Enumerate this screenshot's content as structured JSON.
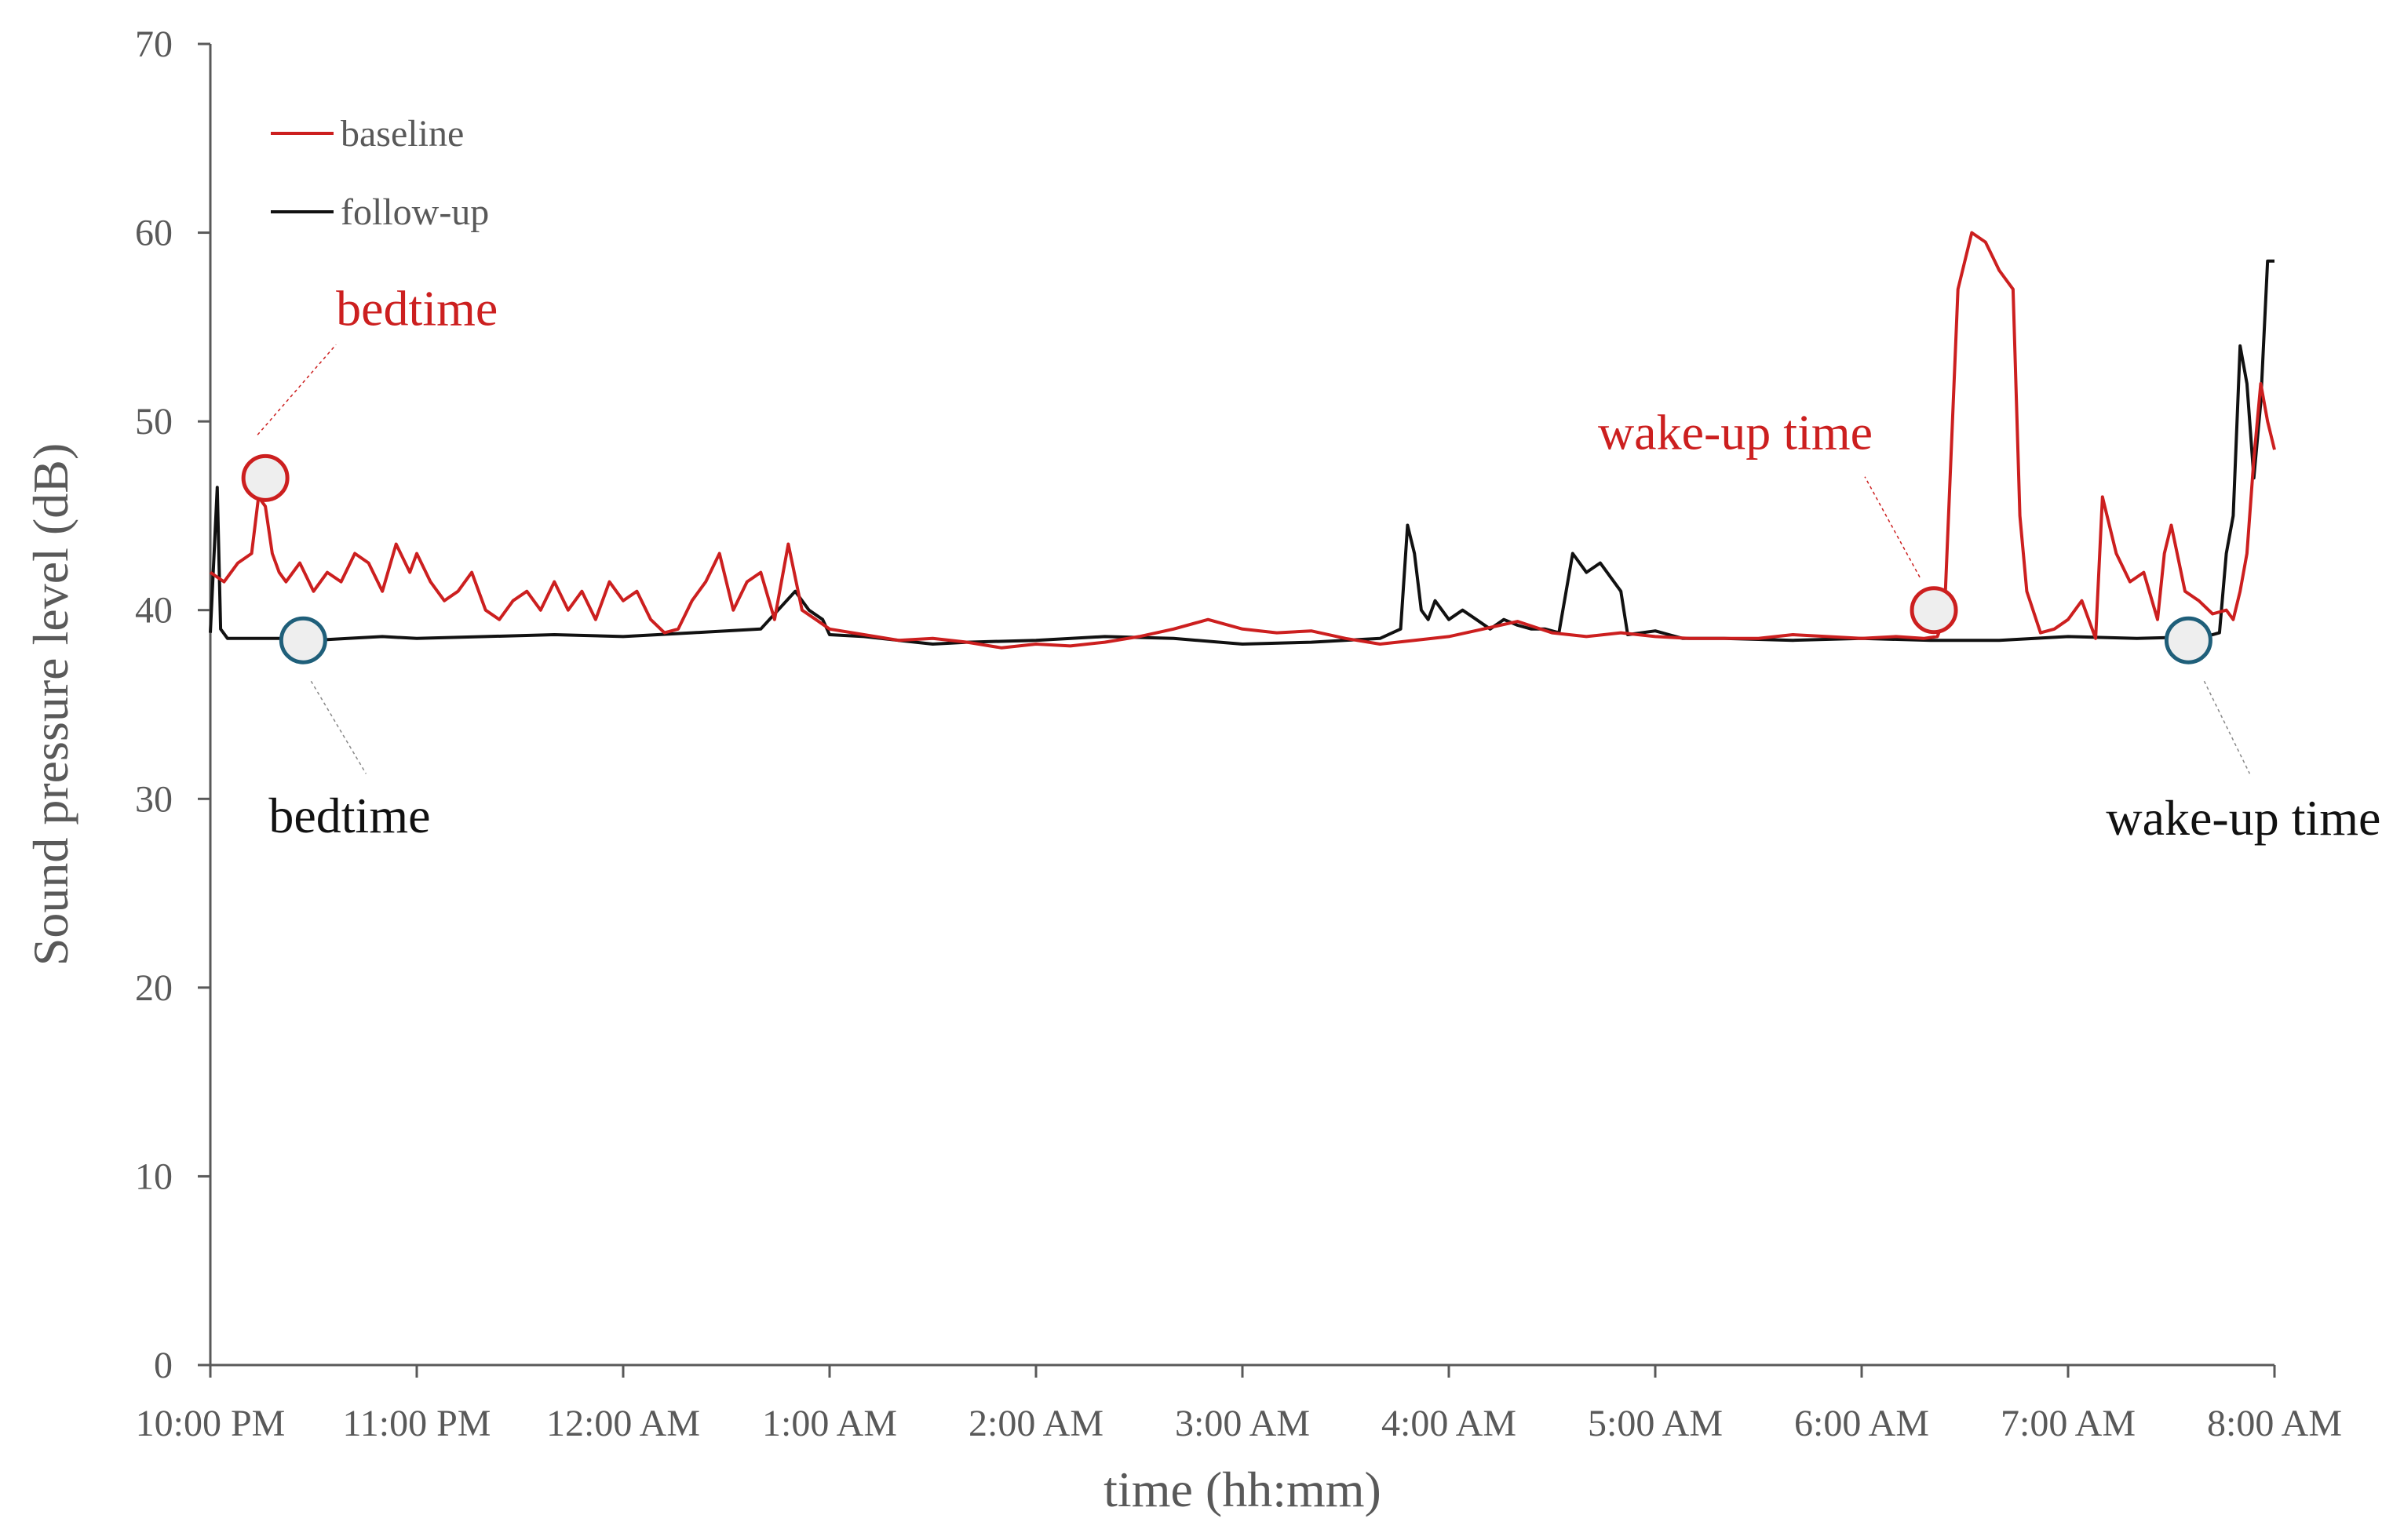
{
  "chart_data": {
    "type": "line",
    "title": "",
    "xlabel": "time (hh:mm)",
    "ylabel": "Sound pressure level (dB)",
    "ylim": [
      0,
      70
    ],
    "yticks": [
      0,
      10,
      20,
      30,
      40,
      50,
      60,
      70
    ],
    "xlim": [
      "10:00 PM",
      "8:00 AM"
    ],
    "xticks": [
      "10:00 PM",
      "11:00 PM",
      "12:00 AM",
      "1:00 AM",
      "2:00 AM",
      "3:00 AM",
      "4:00 AM",
      "5:00 AM",
      "6:00 AM",
      "7:00 AM",
      "8:00 AM"
    ],
    "grid": false,
    "legend_position": "top-left",
    "series": [
      {
        "name": "baseline",
        "color": "#cc1f1f",
        "x": [
          "10:00 PM",
          "10:04 PM",
          "10:08 PM",
          "10:12 PM",
          "10:14 PM",
          "10:16 PM",
          "10:18 PM",
          "10:20 PM",
          "10:22 PM",
          "10:26 PM",
          "10:30 PM",
          "10:34 PM",
          "10:38 PM",
          "10:42 PM",
          "10:46 PM",
          "10:50 PM",
          "10:54 PM",
          "10:58 PM",
          "11:00 PM",
          "11:04 PM",
          "11:08 PM",
          "11:12 PM",
          "11:16 PM",
          "11:20 PM",
          "11:24 PM",
          "11:28 PM",
          "11:32 PM",
          "11:36 PM",
          "11:40 PM",
          "11:44 PM",
          "11:48 PM",
          "11:52 PM",
          "11:56 PM",
          "12:00 AM",
          "12:04 AM",
          "12:08 AM",
          "12:12 AM",
          "12:16 AM",
          "12:20 AM",
          "12:24 AM",
          "12:28 AM",
          "12:32 AM",
          "12:36 AM",
          "12:40 AM",
          "12:44 AM",
          "12:48 AM",
          "12:52 AM",
          "12:56 AM",
          "1:00 AM",
          "1:10 AM",
          "1:20 AM",
          "1:30 AM",
          "1:40 AM",
          "1:50 AM",
          "2:00 AM",
          "2:10 AM",
          "2:20 AM",
          "2:30 AM",
          "2:40 AM",
          "2:50 AM",
          "3:00 AM",
          "3:10 AM",
          "3:20 AM",
          "3:30 AM",
          "3:40 AM",
          "3:50 AM",
          "4:00 AM",
          "4:10 AM",
          "4:20 AM",
          "4:30 AM",
          "4:40 AM",
          "4:50 AM",
          "5:00 AM",
          "5:10 AM",
          "5:20 AM",
          "5:30 AM",
          "5:40 AM",
          "5:50 AM",
          "6:00 AM",
          "6:10 AM",
          "6:18 AM",
          "6:22 AM",
          "6:24 AM",
          "6:28 AM",
          "6:32 AM",
          "6:36 AM",
          "6:40 AM",
          "6:44 AM",
          "6:46 AM",
          "6:48 AM",
          "6:52 AM",
          "6:56 AM",
          "7:00 AM",
          "7:04 AM",
          "7:08 AM",
          "7:10 AM",
          "7:14 AM",
          "7:18 AM",
          "7:22 AM",
          "7:26 AM",
          "7:28 AM",
          "7:30 AM",
          "7:34 AM",
          "7:38 AM",
          "7:42 AM",
          "7:46 AM",
          "7:48 AM",
          "7:50 AM",
          "7:52 AM",
          "7:54 AM",
          "7:56 AM",
          "7:58 AM",
          "8:00 AM"
        ],
        "y": [
          42.0,
          41.5,
          42.5,
          43.0,
          46.0,
          45.5,
          43.0,
          42.0,
          41.5,
          42.5,
          41.0,
          42.0,
          41.5,
          43.0,
          42.5,
          41.0,
          43.5,
          42.0,
          43.0,
          41.5,
          40.5,
          41.0,
          42.0,
          40.0,
          39.5,
          40.5,
          41.0,
          40.0,
          41.5,
          40.0,
          41.0,
          39.5,
          41.5,
          40.5,
          41.0,
          39.5,
          38.8,
          39.0,
          40.5,
          41.5,
          43.0,
          40.0,
          41.5,
          42.0,
          39.5,
          43.5,
          40.0,
          39.5,
          39.0,
          38.7,
          38.4,
          38.5,
          38.3,
          38.0,
          38.2,
          38.1,
          38.3,
          38.6,
          39.0,
          39.5,
          39.0,
          38.8,
          38.9,
          38.5,
          38.2,
          38.4,
          38.6,
          39.0,
          39.4,
          38.8,
          38.6,
          38.8,
          38.6,
          38.5,
          38.5,
          38.5,
          38.7,
          38.6,
          38.5,
          38.6,
          38.5,
          38.6,
          39.5,
          57.0,
          60.0,
          59.5,
          58.0,
          57.0,
          45.0,
          41.0,
          38.8,
          39.0,
          39.5,
          40.5,
          38.5,
          46.0,
          43.0,
          41.5,
          42.0,
          39.5,
          43.0,
          44.5,
          41.0,
          40.5,
          39.8,
          40.0,
          39.5,
          41.0,
          43.0,
          48.0,
          52.0,
          50.0,
          48.5
        ]
      },
      {
        "name": "follow-up",
        "color": "#111111",
        "x": [
          "10:00 PM",
          "10:02 PM",
          "10:03 PM",
          "10:05 PM",
          "10:10 PM",
          "10:20 PM",
          "10:30 PM",
          "10:40 PM",
          "10:50 PM",
          "11:00 PM",
          "11:20 PM",
          "11:40 PM",
          "12:00 AM",
          "12:20 AM",
          "12:40 AM",
          "12:50 AM",
          "12:54 AM",
          "12:58 AM",
          "1:00 AM",
          "1:10 AM",
          "1:20 AM",
          "1:30 AM",
          "1:40 AM",
          "2:00 AM",
          "2:20 AM",
          "2:40 AM",
          "3:00 AM",
          "3:20 AM",
          "3:40 AM",
          "3:46 AM",
          "3:48 AM",
          "3:50 AM",
          "3:52 AM",
          "3:54 AM",
          "3:56 AM",
          "4:00 AM",
          "4:04 AM",
          "4:08 AM",
          "4:12 AM",
          "4:16 AM",
          "4:20 AM",
          "4:24 AM",
          "4:28 AM",
          "4:32 AM",
          "4:36 AM",
          "4:40 AM",
          "4:44 AM",
          "4:48 AM",
          "4:50 AM",
          "4:52 AM",
          "4:56 AM",
          "5:00 AM",
          "5:04 AM",
          "5:06 AM",
          "5:08 AM",
          "5:20 AM",
          "5:40 AM",
          "6:00 AM",
          "6:20 AM",
          "6:40 AM",
          "7:00 AM",
          "7:20 AM",
          "7:40 AM",
          "7:44 AM",
          "7:46 AM",
          "7:48 AM",
          "7:50 AM",
          "7:52 AM",
          "7:54 AM",
          "7:56 AM",
          "7:58 AM",
          "8:00 AM"
        ],
        "y": [
          38.8,
          46.5,
          39.0,
          38.5,
          38.5,
          38.5,
          38.4,
          38.5,
          38.6,
          38.5,
          38.6,
          38.7,
          38.6,
          38.8,
          39.0,
          41.0,
          40.0,
          39.5,
          38.7,
          38.6,
          38.4,
          38.2,
          38.3,
          38.4,
          38.6,
          38.5,
          38.2,
          38.3,
          38.5,
          39.0,
          44.5,
          43.0,
          40.0,
          39.5,
          40.5,
          39.5,
          40.0,
          39.5,
          39.0,
          39.5,
          39.2,
          39.0,
          39.0,
          38.8,
          43.0,
          42.0,
          42.5,
          41.5,
          41.0,
          38.7,
          38.8,
          38.9,
          38.7,
          38.6,
          38.5,
          38.5,
          38.4,
          38.5,
          38.4,
          38.4,
          38.6,
          38.5,
          38.6,
          38.8,
          43.0,
          45.0,
          54.0,
          52.0,
          47.0,
          51.0,
          58.5,
          58.5
        ]
      }
    ],
    "annotations": [
      {
        "label": "bedtime",
        "series": "baseline",
        "x": "10:16 PM",
        "y": 47.0,
        "color": "#cc1f1f"
      },
      {
        "label": "wake-up time",
        "series": "baseline",
        "x": "6:21 AM",
        "y": 40.0,
        "color": "#cc1f1f"
      },
      {
        "label": "bedtime",
        "series": "follow-up",
        "x": "10:27 PM",
        "y": 38.4,
        "color": "#111111"
      },
      {
        "label": "wake-up time",
        "series": "follow-up",
        "x": "7:35 AM",
        "y": 38.4,
        "color": "#111111"
      }
    ],
    "marker_fill": "#eeeeee",
    "followup_marker_color": "#1f5f7a"
  }
}
